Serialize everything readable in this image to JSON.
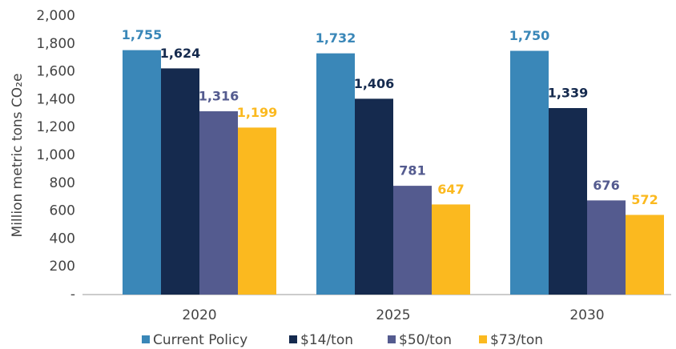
{
  "chart_data": {
    "type": "bar",
    "y_axis_label": "Million metric tons CO₂e",
    "categories": [
      "2020",
      "2025",
      "2030"
    ],
    "series": [
      {
        "name": "Current Policy",
        "color": "#3a87b8",
        "values": [
          1755,
          1732,
          1750
        ],
        "value_labels": [
          "1,755",
          "1,732",
          "1,750"
        ]
      },
      {
        "name": "$14/ton",
        "color": "#152a4e",
        "values": [
          1624,
          1406,
          1339
        ],
        "value_labels": [
          "1,624",
          "1,406",
          "1,339"
        ]
      },
      {
        "name": "$50/ton",
        "color": "#545b8f",
        "values": [
          1316,
          781,
          676
        ],
        "value_labels": [
          "1,316",
          "781",
          "676"
        ]
      },
      {
        "name": "$73/ton",
        "color": "#fbb91f",
        "values": [
          1199,
          647,
          572
        ],
        "value_labels": [
          "1,199",
          "647",
          "572"
        ]
      }
    ],
    "ylim": [
      0,
      2000
    ],
    "yticks": [
      {
        "value": 0,
        "label": "-"
      },
      200,
      400,
      600,
      800,
      {
        "value": 1000,
        "label": "1,000"
      },
      {
        "value": 1200,
        "label": "1,200"
      },
      {
        "value": 1400,
        "label": "1,400"
      },
      {
        "value": 1600,
        "label": "1,600"
      },
      {
        "value": 1800,
        "label": "1,800"
      },
      {
        "value": 2000,
        "label": "2,000"
      }
    ],
    "legend": "bottom"
  }
}
